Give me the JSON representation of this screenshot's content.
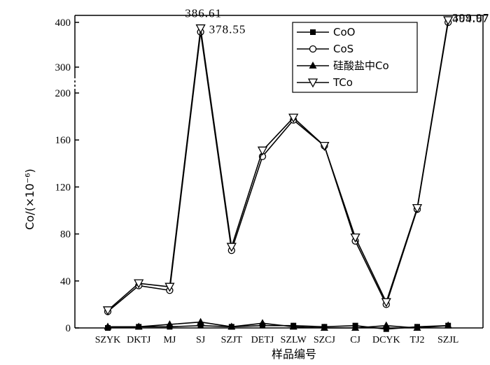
{
  "chart_data": {
    "type": "line",
    "title": "",
    "xlabel": "样品编号",
    "ylabel": "Co/(×10⁻⁶)",
    "grid": false,
    "legend_position": "top-right",
    "categories": [
      "SZYK",
      "DKTJ",
      "MJ",
      "SJ",
      "SZJT",
      "DETJ",
      "SZLW",
      "SZCJ",
      "CJ",
      "DCYK",
      "TJ2",
      "SZJL"
    ],
    "y_axis": {
      "broken": true,
      "lower_range": [
        0,
        200
      ],
      "lower_ticks": [
        "0",
        "40",
        "80",
        "120",
        "160",
        "200"
      ],
      "upper_ticks": [
        "300",
        "400"
      ]
    },
    "series": [
      {
        "name": "CoO",
        "marker": "square-filled",
        "values": [
          {
            "x": "SZYK",
            "y": 0
          },
          {
            "x": "DKTJ",
            "y": 1
          },
          {
            "x": "MJ",
            "y": 1
          },
          {
            "x": "SJ",
            "y": 2
          },
          {
            "x": "SZJT",
            "y": 1
          },
          {
            "x": "DETJ",
            "y": 2
          },
          {
            "x": "SZLW",
            "y": 2
          },
          {
            "x": "SZCJ",
            "y": 1
          },
          {
            "x": "CJ",
            "y": 2
          },
          {
            "x": "DCYK",
            "y": -1
          },
          {
            "x": "TJ2",
            "y": 1
          },
          {
            "x": "SZJL",
            "y": 2
          }
        ]
      },
      {
        "name": "CoS",
        "marker": "circle-open",
        "values": [
          {
            "x": "SZYK",
            "y": 14
          },
          {
            "x": "DKTJ",
            "y": 36
          },
          {
            "x": "MJ",
            "y": 32
          },
          {
            "x": "SJ",
            "y": 378.55
          },
          {
            "x": "SZJT",
            "y": 66
          },
          {
            "x": "DETJ",
            "y": 146
          },
          {
            "x": "SZLW",
            "y": 177
          },
          {
            "x": "SZCJ",
            "y": 155
          },
          {
            "x": "CJ",
            "y": 74
          },
          {
            "x": "DCYK",
            "y": 20
          },
          {
            "x": "TJ2",
            "y": 101
          },
          {
            "x": "SZJL",
            "y": 399.97
          }
        ]
      },
      {
        "name": "硅酸盐中Co",
        "marker": "triangle-up-filled",
        "values": [
          {
            "x": "SZYK",
            "y": 1
          },
          {
            "x": "DKTJ",
            "y": 1
          },
          {
            "x": "MJ",
            "y": 3
          },
          {
            "x": "SJ",
            "y": 5
          },
          {
            "x": "SZJT",
            "y": 1
          },
          {
            "x": "DETJ",
            "y": 4
          },
          {
            "x": "SZLW",
            "y": 1
          },
          {
            "x": "SZCJ",
            "y": 0
          },
          {
            "x": "CJ",
            "y": 0
          },
          {
            "x": "DCYK",
            "y": 2
          },
          {
            "x": "TJ2",
            "y": 0
          },
          {
            "x": "SZJL",
            "y": 2
          }
        ]
      },
      {
        "name": "TCo",
        "marker": "triangle-down-open",
        "values": [
          {
            "x": "SZYK",
            "y": 15
          },
          {
            "x": "DKTJ",
            "y": 38
          },
          {
            "x": "MJ",
            "y": 35
          },
          {
            "x": "SJ",
            "y": 386.61
          },
          {
            "x": "SZJT",
            "y": 69
          },
          {
            "x": "DETJ",
            "y": 151
          },
          {
            "x": "SZLW",
            "y": 179
          },
          {
            "x": "SZCJ",
            "y": 155
          },
          {
            "x": "CJ",
            "y": 77
          },
          {
            "x": "DCYK",
            "y": 22
          },
          {
            "x": "TJ2",
            "y": 102
          },
          {
            "x": "SZJL",
            "y": 404.67
          }
        ]
      }
    ],
    "annotations": [
      {
        "text": "386.61",
        "series": "TCo",
        "x": "SJ",
        "position": "above"
      },
      {
        "text": "378.55",
        "series": "CoS",
        "x": "SJ",
        "position": "right"
      },
      {
        "text": "404.67",
        "series": "TCo",
        "x": "SZJL",
        "position": "right"
      },
      {
        "text": "399.97",
        "series": "CoS",
        "x": "SZJL",
        "position": "right"
      }
    ]
  }
}
